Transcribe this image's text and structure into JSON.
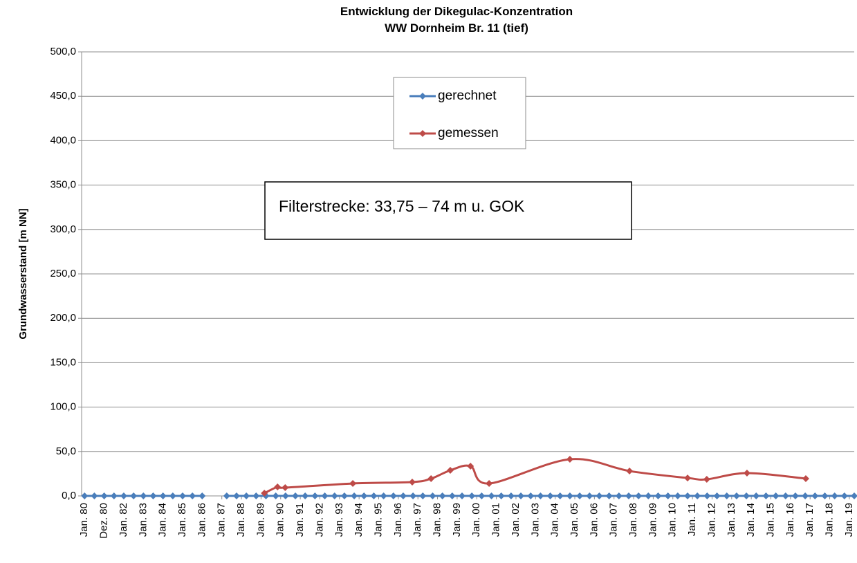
{
  "chart_data": {
    "type": "line",
    "title": "Entwicklung der Dikegulac-Konzentration",
    "subtitle": "WW Dornheim Br. 11 (tief)",
    "y_label": "Grundwasserstand [m NN]",
    "annotation": "Filterstrecke: 33,75 – 74 m u. GOK",
    "xlim": [
      1979.85,
      2019.25
    ],
    "xticks": [
      {
        "value": 1980,
        "label": "Jan. 80"
      },
      {
        "value": 1981,
        "label": "Dez. 80"
      },
      {
        "value": 1982,
        "label": "Jan. 82"
      },
      {
        "value": 1983,
        "label": "Jan. 83"
      },
      {
        "value": 1984,
        "label": "Jan. 84"
      },
      {
        "value": 1985,
        "label": "Jan. 85"
      },
      {
        "value": 1986,
        "label": "Jan. 86"
      },
      {
        "value": 1987,
        "label": "Jan. 87"
      },
      {
        "value": 1988,
        "label": "Jan. 88"
      },
      {
        "value": 1989,
        "label": "Jan. 89"
      },
      {
        "value": 1990,
        "label": "Jan. 90"
      },
      {
        "value": 1991,
        "label": "Jan. 91"
      },
      {
        "value": 1992,
        "label": "Jan. 92"
      },
      {
        "value": 1993,
        "label": "Jan. 93"
      },
      {
        "value": 1994,
        "label": "Jan. 94"
      },
      {
        "value": 1995,
        "label": "Jan. 95"
      },
      {
        "value": 1996,
        "label": "Jan. 96"
      },
      {
        "value": 1997,
        "label": "Jan. 97"
      },
      {
        "value": 1998,
        "label": "Jan. 98"
      },
      {
        "value": 1999,
        "label": "Jan. 99"
      },
      {
        "value": 2000,
        "label": "Jan. 00"
      },
      {
        "value": 2001,
        "label": "Jan. 01"
      },
      {
        "value": 2002,
        "label": "Jan. 02"
      },
      {
        "value": 2003,
        "label": "Jan. 03"
      },
      {
        "value": 2004,
        "label": "Jan. 04"
      },
      {
        "value": 2005,
        "label": "Jan. 05"
      },
      {
        "value": 2006,
        "label": "Jan. 06"
      },
      {
        "value": 2007,
        "label": "Jan. 07"
      },
      {
        "value": 2008,
        "label": "Jan. 08"
      },
      {
        "value": 2009,
        "label": "Jan. 09"
      },
      {
        "value": 2010,
        "label": "Jan. 10"
      },
      {
        "value": 2011,
        "label": "Jan. 11"
      },
      {
        "value": 2012,
        "label": "Jan. 12"
      },
      {
        "value": 2013,
        "label": "Jan. 13"
      },
      {
        "value": 2014,
        "label": "Jan. 14"
      },
      {
        "value": 2015,
        "label": "Jan. 15"
      },
      {
        "value": 2016,
        "label": "Jan. 16"
      },
      {
        "value": 2017,
        "label": "Jan. 17"
      },
      {
        "value": 2018,
        "label": "Jan. 18"
      },
      {
        "value": 2019,
        "label": "Jan. 19"
      }
    ],
    "ylim": [
      0,
      500
    ],
    "yticks": [
      {
        "value": 0,
        "label": "0,0"
      },
      {
        "value": 50,
        "label": "50,0"
      },
      {
        "value": 100,
        "label": "100,0"
      },
      {
        "value": 150,
        "label": "150,0"
      },
      {
        "value": 200,
        "label": "200,0"
      },
      {
        "value": 250,
        "label": "250,0"
      },
      {
        "value": 300,
        "label": "300,0"
      },
      {
        "value": 350,
        "label": "350,0"
      },
      {
        "value": 400,
        "label": "400,0"
      },
      {
        "value": 450,
        "label": "450,0"
      },
      {
        "value": 500,
        "label": "500,0"
      }
    ],
    "grid": true,
    "legend": "top",
    "series": [
      {
        "name": "gerechnet",
        "color": "#4a7ebb",
        "smooth": false,
        "x": [
          1980,
          1980.5,
          1981,
          1981.5,
          1982,
          1982.5,
          1983,
          1983.5,
          1984,
          1984.5,
          1985,
          1985.5,
          1986,
          1986.5,
          1987.25,
          1987.75,
          1988.25,
          1988.75,
          1989.25,
          1989.75,
          1990.25,
          1990.75,
          1991.25,
          1991.75,
          1992.25,
          1992.75,
          1993.25,
          1993.75,
          1994.25,
          1994.75,
          1995.25,
          1995.75,
          1996.25,
          1996.75,
          1997.25,
          1997.75,
          1998.25,
          1998.75,
          1999.25,
          1999.75,
          2000.25,
          2000.75,
          2001.25,
          2001.75,
          2002.25,
          2002.75,
          2003.25,
          2003.75,
          2004.25,
          2004.75,
          2005.25,
          2005.75,
          2006.25,
          2006.75,
          2007.25,
          2007.75,
          2008.25,
          2008.75,
          2009.25,
          2009.75,
          2010.25,
          2010.75,
          2011.25,
          2011.75,
          2012.25,
          2012.75,
          2013.25,
          2013.75,
          2014.25,
          2014.75,
          2015.25,
          2015.75,
          2016.25,
          2016.75,
          2017.25,
          2017.75,
          2018.25,
          2018.75,
          2019.25
        ],
        "values": [
          0,
          0,
          0,
          0,
          0,
          0,
          0,
          0,
          0,
          0,
          0,
          0,
          0,
          null,
          0,
          0,
          0,
          0,
          0,
          0,
          0,
          0,
          0,
          0,
          0,
          0,
          0,
          0,
          0,
          0,
          0,
          0,
          0,
          0,
          0,
          0,
          0,
          0,
          0,
          0,
          0,
          0,
          0,
          0,
          0,
          0,
          0,
          0,
          0,
          0,
          0,
          0,
          0,
          0,
          0,
          0,
          0,
          0,
          0,
          0,
          0,
          0,
          0,
          0,
          0,
          0,
          0,
          0,
          0,
          0,
          0,
          0,
          0,
          0,
          0,
          0,
          0,
          0,
          0
        ]
      },
      {
        "name": "gemessen",
        "color": "#be4b48",
        "smooth": true,
        "x": [
          1989.17,
          1989.84,
          1990.23,
          1993.68,
          1996.71,
          1997.67,
          1998.65,
          1999.68,
          2000.63,
          2004.75,
          2007.79,
          2010.75,
          2011.73,
          2013.78,
          2016.78
        ],
        "values": [
          3.1,
          10.1,
          9.3,
          14.0,
          15.6,
          19.5,
          28.8,
          33.5,
          14.0,
          41.3,
          28.0,
          20.2,
          18.7,
          25.7,
          19.5
        ]
      }
    ]
  }
}
